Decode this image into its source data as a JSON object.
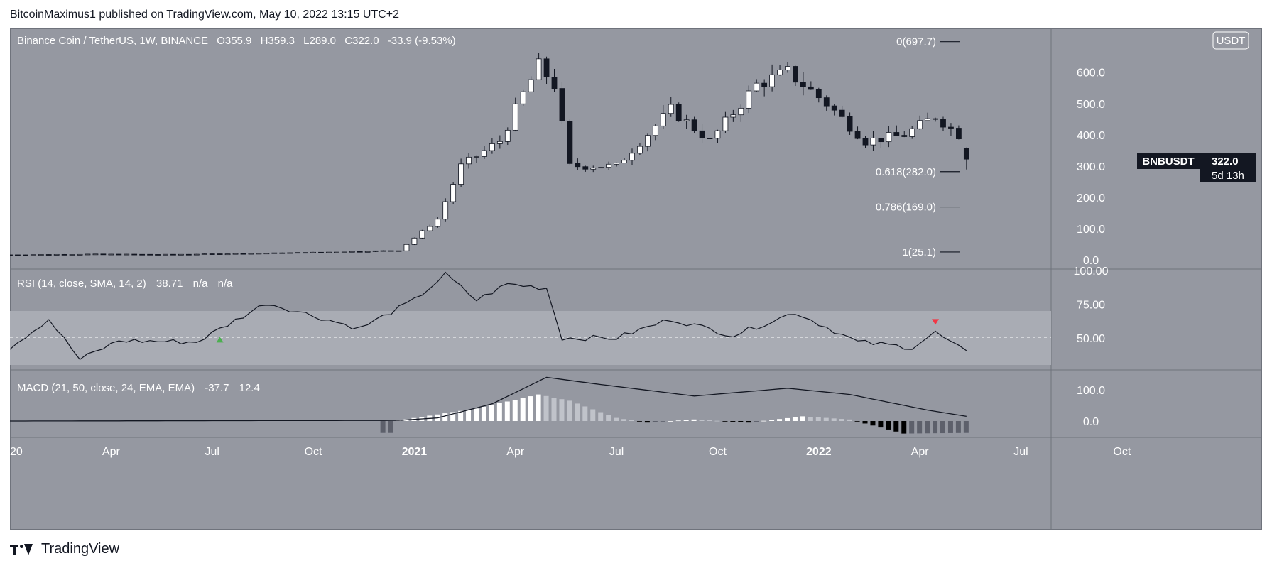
{
  "attribution": "BitcoinMaximus1 published on TradingView.com, May 10, 2022 13:15 UTC+2",
  "brand": "TradingView",
  "main_legend": {
    "symbol": "Binance Coin / TetherUS, 1W, BINANCE",
    "o_label": "O",
    "o": "355.9",
    "h_label": "H",
    "h": "359.3",
    "l_label": "L",
    "l": "289.0",
    "c_label": "C",
    "c": "322.0",
    "change": "-33.9 (-9.53%)"
  },
  "currency_badge": "USDT",
  "price_tag": {
    "symbol": "BNBUSDT",
    "price": "322.0",
    "countdown": "5d 13h"
  },
  "price_axis": [
    "600.0",
    "500.0",
    "400.0",
    "300.0",
    "200.0",
    "100.0",
    "0.0"
  ],
  "fib_levels": [
    {
      "label": "0(697.7)",
      "value": 697.7
    },
    {
      "label": "0.618(282.0)",
      "value": 282.0
    },
    {
      "label": "0.786(169.0)",
      "value": 169.0
    },
    {
      "label": "1(25.1)",
      "value": 25.1
    }
  ],
  "rsi_legend": {
    "title": "RSI (14, close, SMA, 14, 2)",
    "value": "38.71",
    "v2": "n/a",
    "v3": "n/a"
  },
  "rsi_axis": [
    "100.00",
    "75.00",
    "50.00"
  ],
  "macd_legend": {
    "title": "MACD (21, 50, close, 24, EMA, EMA)",
    "value": "-37.7",
    "v2": "12.4"
  },
  "macd_axis": [
    "100.0",
    "0.0"
  ],
  "time_axis": [
    "20",
    "Apr",
    "Jul",
    "Oct",
    "2021",
    "Apr",
    "Jul",
    "Oct",
    "2022",
    "Apr",
    "Jul",
    "Oct"
  ],
  "colors": {
    "panel_bg": "#9598a1",
    "up": "#ffffff",
    "down": "#131722",
    "rsi_band": "#a9acb4",
    "bull_marker": "#4caf50",
    "bear_marker": "#f23645"
  },
  "chart_data": [
    {
      "type": "candlestick",
      "title": "Binance Coin / TetherUS, 1W, BINANCE",
      "ylim": [
        0,
        720
      ],
      "approx_weekly_close": [
        {
          "week": 0,
          "close": 16
        },
        {
          "week": 10,
          "close": 18
        },
        {
          "week": 20,
          "close": 17
        },
        {
          "week": 30,
          "close": 20
        },
        {
          "week": 40,
          "close": 24
        },
        {
          "week": 50,
          "close": 30
        },
        {
          "week": 55,
          "close": 130
        },
        {
          "week": 58,
          "close": 300
        },
        {
          "week": 63,
          "close": 380
        },
        {
          "week": 66,
          "close": 530
        },
        {
          "week": 68,
          "close": 620
        },
        {
          "week": 70,
          "close": 560
        },
        {
          "week": 72,
          "close": 300
        },
        {
          "week": 78,
          "close": 300
        },
        {
          "week": 85,
          "close": 480
        },
        {
          "week": 90,
          "close": 380
        },
        {
          "week": 96,
          "close": 560
        },
        {
          "week": 100,
          "close": 600
        },
        {
          "week": 105,
          "close": 500
        },
        {
          "week": 110,
          "close": 380
        },
        {
          "week": 115,
          "close": 400
        },
        {
          "week": 119,
          "close": 460
        },
        {
          "week": 122,
          "close": 400
        },
        {
          "week": 123,
          "close": 322
        }
      ],
      "last": {
        "open": 355.9,
        "high": 359.3,
        "low": 289.0,
        "close": 322.0
      }
    },
    {
      "type": "line",
      "title": "RSI (14, close, SMA, 14, 2)",
      "ylim": [
        0,
        100
      ],
      "bands": [
        30,
        50,
        70
      ],
      "approx_values": [
        {
          "week": 0,
          "rsi": 43
        },
        {
          "week": 5,
          "rsi": 64
        },
        {
          "week": 9,
          "rsi": 34
        },
        {
          "week": 14,
          "rsi": 48
        },
        {
          "week": 24,
          "rsi": 47
        },
        {
          "week": 33,
          "rsi": 76
        },
        {
          "week": 45,
          "rsi": 57
        },
        {
          "week": 52,
          "rsi": 78
        },
        {
          "week": 56,
          "rsi": 97
        },
        {
          "week": 60,
          "rsi": 78
        },
        {
          "week": 64,
          "rsi": 90
        },
        {
          "week": 69,
          "rsi": 87
        },
        {
          "week": 71,
          "rsi": 50
        },
        {
          "week": 78,
          "rsi": 50
        },
        {
          "week": 85,
          "rsi": 64
        },
        {
          "week": 93,
          "rsi": 52
        },
        {
          "week": 101,
          "rsi": 69
        },
        {
          "week": 109,
          "rsi": 47
        },
        {
          "week": 116,
          "rsi": 43
        },
        {
          "week": 119,
          "rsi": 54
        },
        {
          "week": 123,
          "rsi": 39
        }
      ],
      "markers": [
        {
          "week": 27,
          "direction": "up"
        },
        {
          "week": 119,
          "direction": "down"
        }
      ]
    },
    {
      "type": "bar",
      "title": "MACD (21, 50, close, 24, EMA, EMA)",
      "ylim": [
        -50,
        150
      ],
      "macd_line_approx": [
        {
          "week": 0,
          "v": 0
        },
        {
          "week": 50,
          "v": 2
        },
        {
          "week": 55,
          "v": 10
        },
        {
          "week": 62,
          "v": 55
        },
        {
          "week": 69,
          "v": 140
        },
        {
          "week": 75,
          "v": 120
        },
        {
          "week": 88,
          "v": 80
        },
        {
          "week": 100,
          "v": 105
        },
        {
          "week": 108,
          "v": 85
        },
        {
          "week": 118,
          "v": 35
        },
        {
          "week": 123,
          "v": 15
        }
      ],
      "histogram_approx": [
        {
          "week": 50,
          "v": 2
        },
        {
          "week": 60,
          "v": 40
        },
        {
          "week": 68,
          "v": 85
        },
        {
          "week": 72,
          "v": 65
        },
        {
          "week": 78,
          "v": 10
        },
        {
          "week": 82,
          "v": -5
        },
        {
          "week": 88,
          "v": 5
        },
        {
          "week": 95,
          "v": -5
        },
        {
          "week": 102,
          "v": 15
        },
        {
          "week": 108,
          "v": 5
        },
        {
          "week": 115,
          "v": -40
        },
        {
          "week": 123,
          "v": -38
        }
      ]
    }
  ]
}
